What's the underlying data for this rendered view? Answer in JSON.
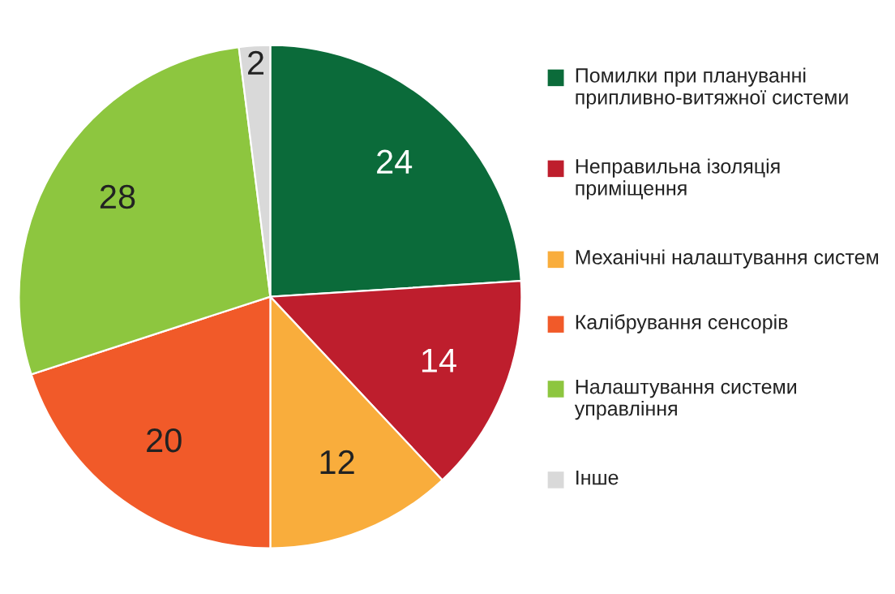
{
  "chart_data": {
    "type": "pie",
    "categories": [
      "Помилки при плануванні припливно-витяжної системи",
      "Неправильна ізоляція приміщення",
      "Механічні налаштування систем",
      "Калібрування сенсорів",
      "Налаштування системи управління",
      "Інше"
    ],
    "values": [
      24,
      14,
      12,
      20,
      28,
      2
    ],
    "colors": [
      "#0b6b3a",
      "#be1e2d",
      "#f9ad3c",
      "#f15a29",
      "#8dc63f",
      "#d9d9d9"
    ],
    "data_labels": true,
    "legend": "right"
  }
}
